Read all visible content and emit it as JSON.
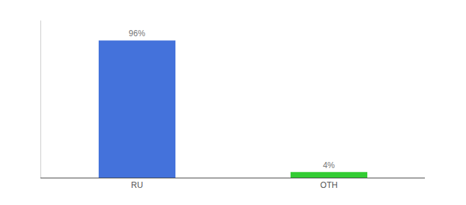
{
  "chart_data": {
    "type": "bar",
    "categories": [
      "RU",
      "OTH"
    ],
    "values": [
      96,
      4
    ],
    "value_labels": [
      "96%",
      "4%"
    ],
    "colors": [
      "#4472db",
      "#33cc33"
    ],
    "ylim": [
      0,
      110
    ],
    "data_labels": true,
    "tick_labels": "x",
    "grid": false
  }
}
